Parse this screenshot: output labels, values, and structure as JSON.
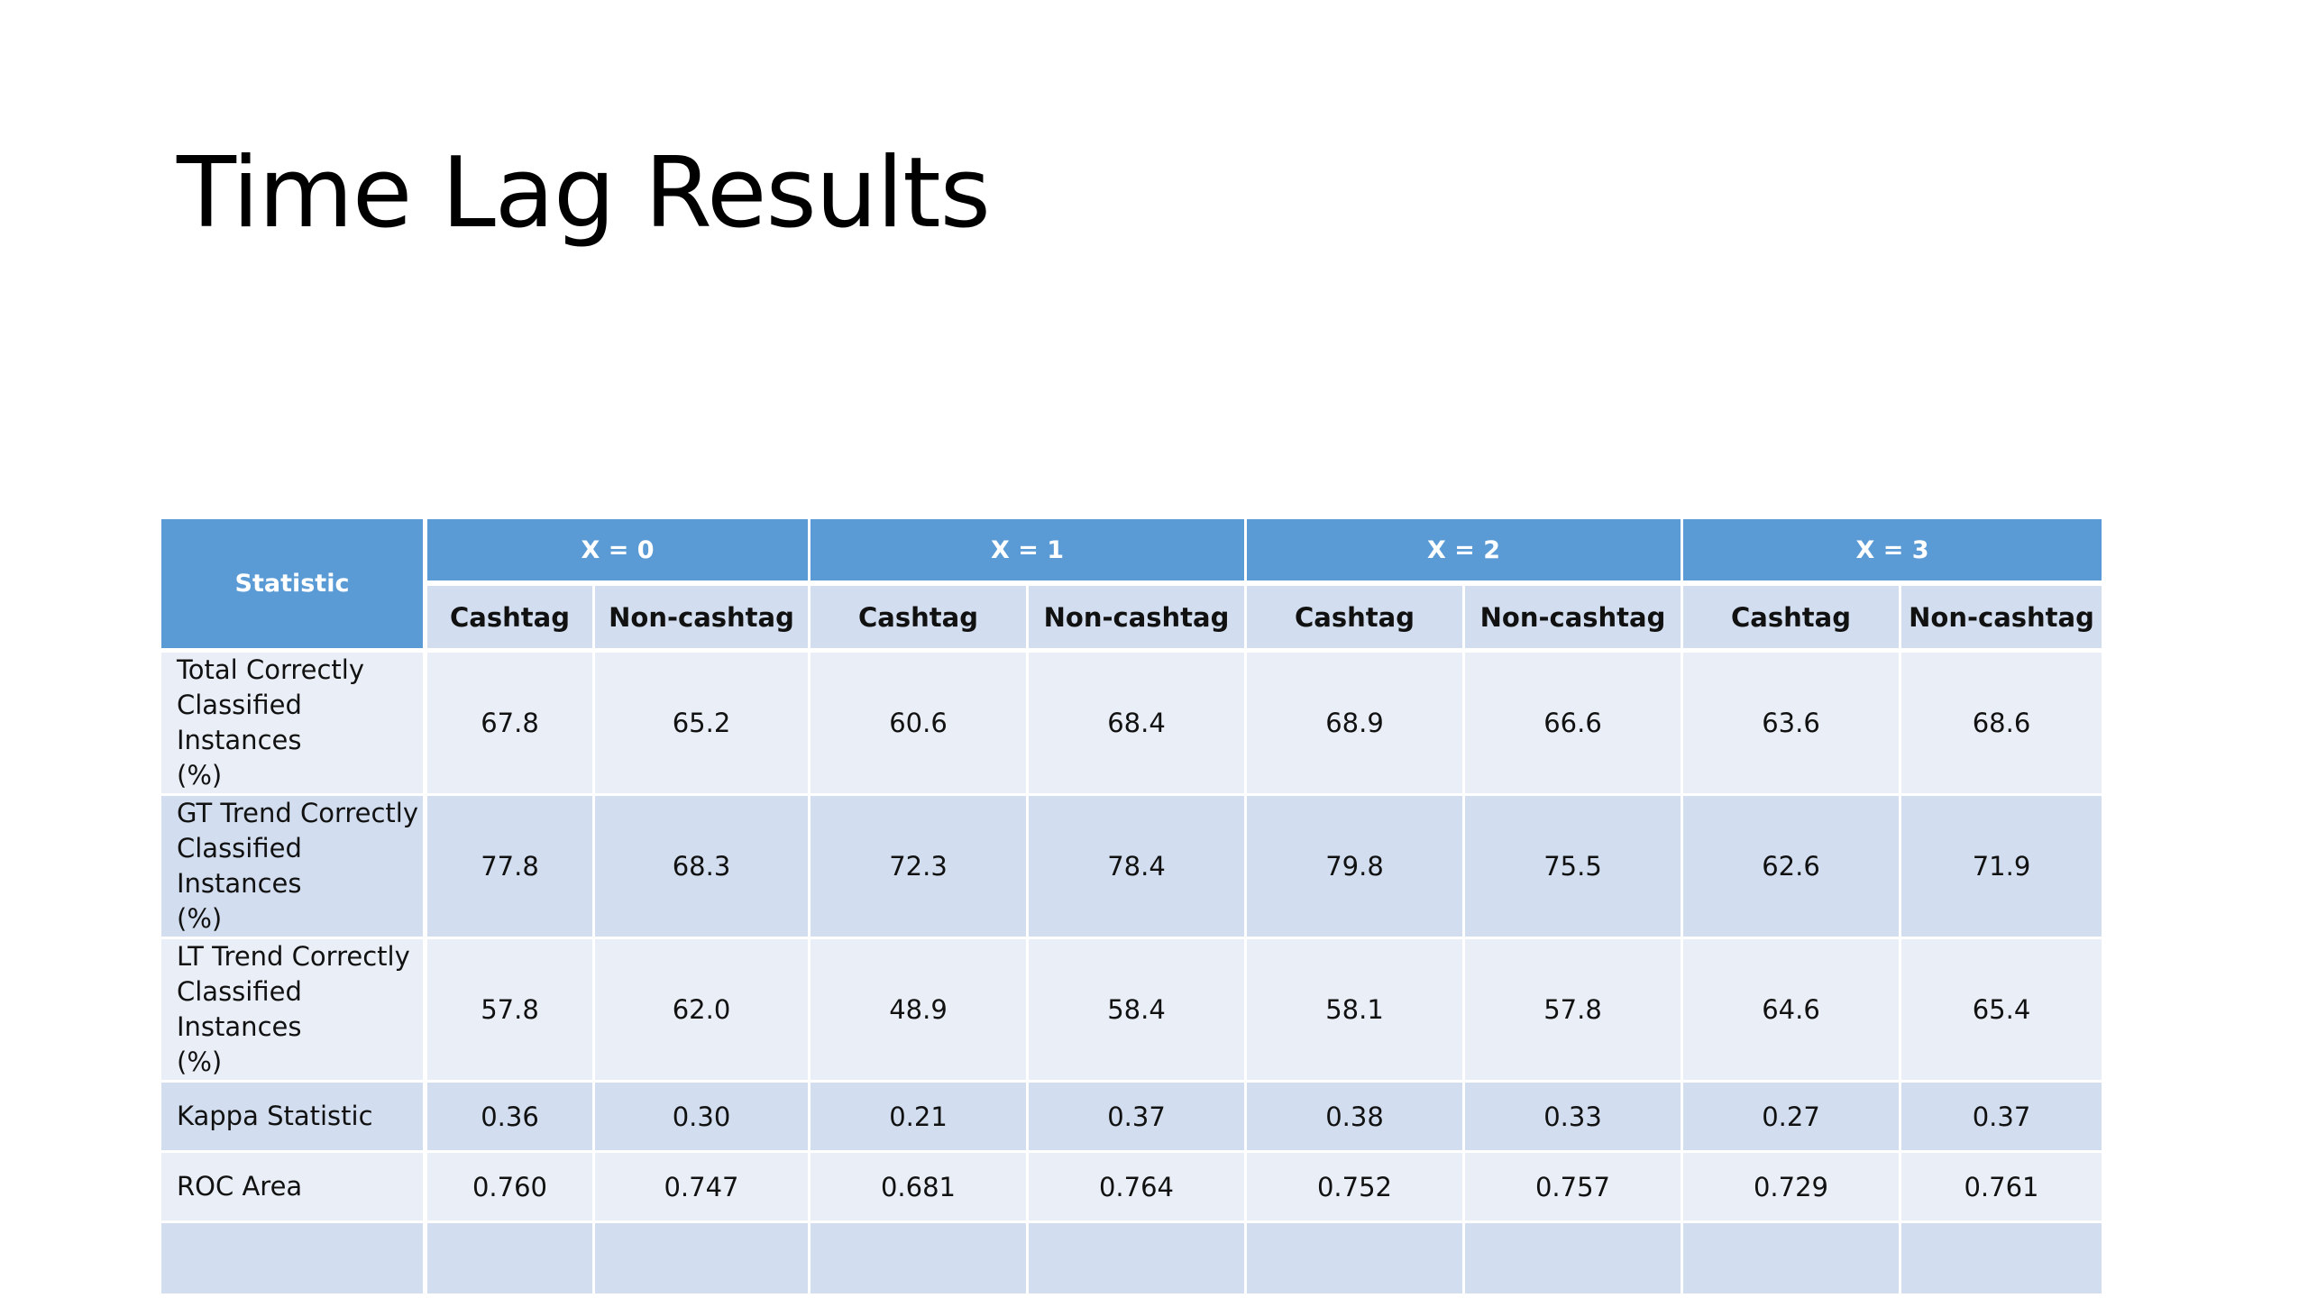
{
  "slide": {
    "title": "Time Lag Results"
  },
  "table": {
    "statistic_header": "Statistic",
    "groups": [
      {
        "label": "X = 0",
        "columns": [
          "Cashtag",
          "Non-cashtag"
        ]
      },
      {
        "label": "X = 1",
        "columns": [
          "Cashtag",
          "Non-cashtag"
        ]
      },
      {
        "label": "X = 2",
        "columns": [
          "Cashtag",
          "Non-cashtag"
        ]
      },
      {
        "label": "X = 3",
        "columns": [
          "Cashtag",
          "Non-cashtag"
        ]
      }
    ],
    "rows": [
      {
        "label_lines": [
          "Total Correctly",
          "Classified Instances",
          "(%)"
        ],
        "values": [
          "67.8",
          "65.2",
          "60.6",
          "68.4",
          "68.9",
          "66.6",
          "63.6",
          "68.6"
        ]
      },
      {
        "label_lines": [
          "GT Trend Correctly",
          "Classified Instances",
          "(%)"
        ],
        "values": [
          "77.8",
          "68.3",
          "72.3",
          "78.4",
          "79.8",
          "75.5",
          "62.6",
          "71.9"
        ]
      },
      {
        "label_lines": [
          "LT Trend Correctly",
          "Classified Instances",
          "(%)"
        ],
        "values": [
          "57.8",
          "62.0",
          "48.9",
          "58.4",
          "58.1",
          "57.8",
          "64.6",
          "65.4"
        ]
      },
      {
        "label_lines": [
          "Kappa Statistic"
        ],
        "values": [
          "0.36",
          "0.30",
          "0.21",
          "0.37",
          "0.38",
          "0.33",
          "0.27",
          "0.37"
        ]
      },
      {
        "label_lines": [
          "ROC Area"
        ],
        "values": [
          "0.760",
          "0.747",
          "0.681",
          "0.764",
          "0.752",
          "0.757",
          "0.729",
          "0.761"
        ]
      }
    ]
  },
  "colors": {
    "header_blue": "#5b9bd5",
    "row_light": "#eaeff7",
    "row_dark": "#d2deef"
  }
}
